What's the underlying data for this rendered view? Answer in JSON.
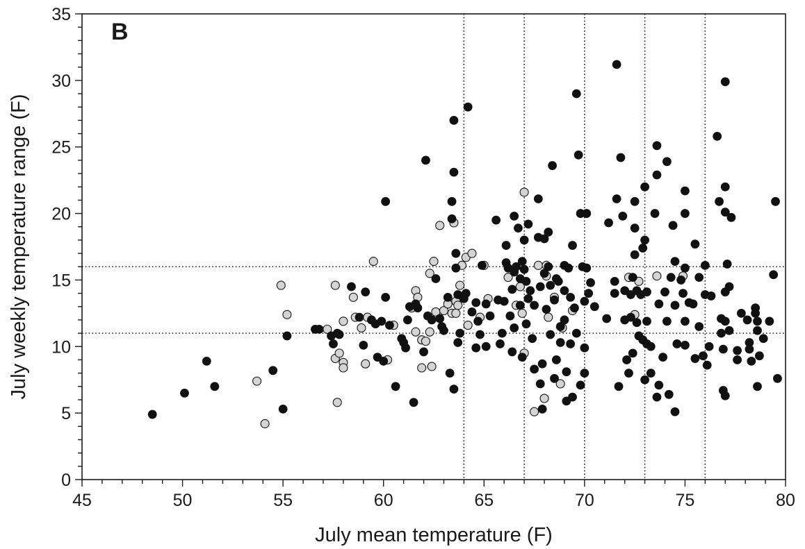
{
  "chart_data": {
    "type": "scatter",
    "panel_label": "B",
    "xlabel": "July mean temperature (F)",
    "ylabel": "July weekly temperature range (F)",
    "xlim": [
      45,
      80
    ],
    "ylim": [
      0,
      35
    ],
    "x_ticks": [
      45,
      50,
      55,
      60,
      65,
      70,
      75,
      80
    ],
    "y_ticks": [
      0,
      5,
      10,
      15,
      20,
      25,
      30,
      35
    ],
    "x_minor_step": 1,
    "y_minor_step": 1,
    "grid": false,
    "reference_lines": {
      "vertical": [
        64,
        67,
        70,
        73,
        76
      ],
      "horizontal": [
        11,
        16
      ]
    },
    "series": [
      {
        "style": "filled",
        "color": "#111111",
        "points": [
          [
            48.5,
            4.9
          ],
          [
            50.1,
            6.5
          ],
          [
            51.2,
            8.9
          ],
          [
            51.6,
            7.0
          ],
          [
            54.5,
            8.2
          ],
          [
            55.0,
            5.3
          ],
          [
            55.2,
            10.8
          ],
          [
            56.6,
            11.3
          ],
          [
            56.8,
            11.3
          ],
          [
            57.4,
            10.8
          ],
          [
            57.5,
            10.2
          ],
          [
            57.7,
            11.0
          ],
          [
            57.8,
            10.9
          ],
          [
            58.4,
            14.5
          ],
          [
            58.8,
            12.2
          ],
          [
            59.0,
            10.1
          ],
          [
            59.1,
            14.1
          ],
          [
            59.4,
            12.0
          ],
          [
            59.6,
            11.7
          ],
          [
            59.7,
            9.2
          ],
          [
            59.9,
            11.9
          ],
          [
            60.0,
            8.9
          ],
          [
            60.1,
            20.9
          ],
          [
            60.1,
            13.7
          ],
          [
            60.3,
            11.6
          ],
          [
            60.6,
            7.0
          ],
          [
            60.9,
            10.6
          ],
          [
            61.0,
            10.3
          ],
          [
            61.1,
            9.9
          ],
          [
            61.2,
            12.0
          ],
          [
            61.3,
            13.0
          ],
          [
            61.5,
            5.8
          ],
          [
            61.6,
            13.2
          ],
          [
            61.7,
            12.9
          ],
          [
            62.0,
            9.6
          ],
          [
            62.1,
            24.0
          ],
          [
            62.2,
            12.3
          ],
          [
            62.4,
            12.0
          ],
          [
            62.6,
            15.1
          ],
          [
            62.8,
            12.1
          ],
          [
            62.9,
            11.5
          ],
          [
            63.0,
            11.2
          ],
          [
            63.2,
            13.7
          ],
          [
            63.3,
            8.0
          ],
          [
            63.4,
            20.9
          ],
          [
            63.4,
            19.6
          ],
          [
            63.5,
            27.0
          ],
          [
            63.5,
            23.1
          ],
          [
            63.5,
            6.8
          ],
          [
            63.6,
            17.0
          ],
          [
            63.6,
            15.9
          ],
          [
            63.7,
            13.9
          ],
          [
            63.7,
            10.3
          ],
          [
            63.8,
            11.0
          ],
          [
            64.0,
            13.6
          ],
          [
            64.1,
            14.0
          ],
          [
            64.2,
            28.0
          ],
          [
            64.4,
            12.6
          ],
          [
            64.6,
            13.3
          ],
          [
            64.6,
            9.9
          ],
          [
            64.7,
            11.9
          ],
          [
            64.8,
            10.9
          ],
          [
            64.9,
            16.1
          ],
          [
            65.1,
            13.2
          ],
          [
            65.1,
            10.0
          ],
          [
            65.3,
            12.3
          ],
          [
            65.6,
            19.5
          ],
          [
            65.7,
            13.5
          ],
          [
            65.8,
            10.2
          ],
          [
            65.9,
            11.0
          ],
          [
            66.0,
            13.4
          ],
          [
            66.1,
            17.6
          ],
          [
            66.1,
            16.3
          ],
          [
            66.2,
            15.9
          ],
          [
            66.3,
            12.3
          ],
          [
            66.4,
            14.3
          ],
          [
            66.4,
            9.6
          ],
          [
            66.5,
            19.8
          ],
          [
            66.5,
            15.6
          ],
          [
            66.5,
            11.4
          ],
          [
            66.6,
            16.0
          ],
          [
            66.7,
            18.9
          ],
          [
            66.8,
            15.1
          ],
          [
            66.8,
            13.1
          ],
          [
            66.9,
            16.4
          ],
          [
            66.9,
            9.2
          ],
          [
            67.0,
            18.0
          ],
          [
            67.0,
            15.8
          ],
          [
            67.1,
            14.9
          ],
          [
            67.1,
            11.7
          ],
          [
            67.2,
            19.2
          ],
          [
            67.2,
            13.6
          ],
          [
            67.3,
            14.2
          ],
          [
            67.4,
            10.6
          ],
          [
            67.5,
            13.1
          ],
          [
            67.5,
            8.3
          ],
          [
            67.7,
            21.1
          ],
          [
            67.7,
            18.2
          ],
          [
            67.8,
            14.5
          ],
          [
            67.8,
            7.2
          ],
          [
            67.9,
            5.3
          ],
          [
            67.9,
            8.7
          ],
          [
            68.0,
            18.1
          ],
          [
            68.0,
            15.5
          ],
          [
            68.1,
            12.8
          ],
          [
            68.2,
            18.6
          ],
          [
            68.2,
            16.0
          ],
          [
            68.3,
            14.6
          ],
          [
            68.3,
            10.9
          ],
          [
            68.4,
            23.6
          ],
          [
            68.5,
            13.5
          ],
          [
            68.5,
            7.6
          ],
          [
            68.6,
            15.1
          ],
          [
            68.6,
            9.0
          ],
          [
            68.7,
            14.9
          ],
          [
            68.8,
            11.5
          ],
          [
            68.8,
            10.3
          ],
          [
            69.0,
            16.1
          ],
          [
            69.0,
            14.2
          ],
          [
            69.0,
            12.0
          ],
          [
            69.1,
            8.1
          ],
          [
            69.1,
            5.9
          ],
          [
            69.2,
            15.9
          ],
          [
            69.3,
            13.7
          ],
          [
            69.3,
            10.2
          ],
          [
            69.4,
            17.6
          ],
          [
            69.4,
            6.2
          ],
          [
            69.5,
            12.9
          ],
          [
            69.6,
            29.0
          ],
          [
            69.6,
            11.0
          ],
          [
            69.7,
            24.4
          ],
          [
            69.8,
            20.0
          ],
          [
            69.8,
            7.1
          ],
          [
            69.9,
            16.0
          ],
          [
            70.0,
            13.4
          ],
          [
            70.0,
            9.9
          ],
          [
            70.0,
            8.0
          ],
          [
            70.1,
            20.0
          ],
          [
            70.1,
            15.9
          ],
          [
            70.2,
            14.0
          ],
          [
            70.3,
            14.8
          ],
          [
            70.5,
            13.0
          ],
          [
            71.1,
            12.1
          ],
          [
            71.2,
            19.3
          ],
          [
            71.5,
            14.9
          ],
          [
            71.5,
            14.0
          ],
          [
            71.6,
            31.2
          ],
          [
            71.6,
            21.1
          ],
          [
            71.7,
            7.0
          ],
          [
            71.8,
            24.2
          ],
          [
            71.9,
            19.8
          ],
          [
            72.0,
            14.2
          ],
          [
            72.0,
            12.0
          ],
          [
            72.1,
            9.0
          ],
          [
            72.2,
            8.0
          ],
          [
            72.3,
            13.9
          ],
          [
            72.3,
            12.2
          ],
          [
            72.4,
            15.2
          ],
          [
            72.4,
            9.5
          ],
          [
            72.5,
            20.9
          ],
          [
            72.5,
            18.9
          ],
          [
            72.5,
            16.9
          ],
          [
            72.6,
            14.2
          ],
          [
            72.6,
            11.8
          ],
          [
            72.7,
            10.8
          ],
          [
            72.8,
            13.9
          ],
          [
            72.9,
            17.4
          ],
          [
            72.9,
            10.5
          ],
          [
            73.0,
            22.0
          ],
          [
            73.0,
            18.0
          ],
          [
            73.0,
            7.5
          ],
          [
            73.1,
            14.1
          ],
          [
            73.1,
            11.9
          ],
          [
            73.1,
            10.2
          ],
          [
            73.3,
            10.0
          ],
          [
            73.3,
            8.0
          ],
          [
            73.5,
            20.0
          ],
          [
            73.6,
            25.1
          ],
          [
            73.6,
            22.9
          ],
          [
            73.6,
            6.2
          ],
          [
            73.7,
            13.2
          ],
          [
            73.7,
            7.1
          ],
          [
            73.9,
            9.2
          ],
          [
            74.0,
            14.1
          ],
          [
            74.1,
            23.9
          ],
          [
            74.1,
            11.9
          ],
          [
            74.2,
            6.4
          ],
          [
            74.3,
            15.2
          ],
          [
            74.4,
            19.1
          ],
          [
            74.5,
            16.4
          ],
          [
            74.5,
            13.1
          ],
          [
            74.5,
            5.1
          ],
          [
            74.6,
            10.2
          ],
          [
            74.8,
            15.0
          ],
          [
            74.9,
            14.0
          ],
          [
            75.0,
            21.7
          ],
          [
            75.0,
            20.0
          ],
          [
            75.0,
            15.9
          ],
          [
            75.0,
            11.9
          ],
          [
            75.0,
            10.1
          ],
          [
            75.2,
            13.3
          ],
          [
            75.4,
            13.2
          ],
          [
            75.5,
            17.7
          ],
          [
            75.5,
            9.1
          ],
          [
            75.7,
            15.2
          ],
          [
            75.7,
            11.5
          ],
          [
            75.9,
            9.3
          ],
          [
            76.0,
            16.1
          ],
          [
            76.0,
            13.9
          ],
          [
            76.1,
            8.6
          ],
          [
            76.2,
            10.0
          ],
          [
            76.3,
            13.8
          ],
          [
            76.6,
            25.8
          ],
          [
            76.7,
            20.9
          ],
          [
            76.8,
            12.1
          ],
          [
            76.8,
            11.0
          ],
          [
            76.9,
            9.8
          ],
          [
            76.9,
            6.7
          ],
          [
            77.0,
            29.9
          ],
          [
            77.0,
            22.0
          ],
          [
            77.0,
            20.1
          ],
          [
            77.0,
            14.1
          ],
          [
            77.0,
            11.9
          ],
          [
            77.0,
            6.3
          ],
          [
            77.1,
            16.2
          ],
          [
            77.2,
            14.5
          ],
          [
            77.2,
            11.2
          ],
          [
            77.3,
            19.7
          ],
          [
            77.6,
            9.7
          ],
          [
            77.6,
            9.0
          ],
          [
            77.8,
            12.5
          ],
          [
            78.1,
            12.0
          ],
          [
            78.2,
            10.3
          ],
          [
            78.2,
            9.8
          ],
          [
            78.3,
            8.9
          ],
          [
            78.5,
            12.9
          ],
          [
            78.5,
            12.5
          ],
          [
            78.6,
            11.9
          ],
          [
            78.6,
            11.2
          ],
          [
            78.6,
            7.0
          ],
          [
            78.7,
            9.3
          ],
          [
            78.9,
            10.6
          ],
          [
            79.2,
            11.9
          ],
          [
            79.4,
            15.4
          ],
          [
            79.5,
            20.9
          ],
          [
            79.6,
            7.6
          ]
        ]
      },
      {
        "style": "open",
        "color": "#d4d4d4",
        "points": [
          [
            53.7,
            7.4
          ],
          [
            54.1,
            4.2
          ],
          [
            54.9,
            14.6
          ],
          [
            55.2,
            12.4
          ],
          [
            57.2,
            11.3
          ],
          [
            57.6,
            9.1
          ],
          [
            57.6,
            14.6
          ],
          [
            57.7,
            5.8
          ],
          [
            57.8,
            9.5
          ],
          [
            58.0,
            8.8
          ],
          [
            58.0,
            8.4
          ],
          [
            58.0,
            11.9
          ],
          [
            58.5,
            13.7
          ],
          [
            58.6,
            12.2
          ],
          [
            58.9,
            11.4
          ],
          [
            59.1,
            8.7
          ],
          [
            59.2,
            12.2
          ],
          [
            59.5,
            16.4
          ],
          [
            60.2,
            9.0
          ],
          [
            60.5,
            11.6
          ],
          [
            61.4,
            12.9
          ],
          [
            61.6,
            14.2
          ],
          [
            61.6,
            11.1
          ],
          [
            61.7,
            13.7
          ],
          [
            61.9,
            10.5
          ],
          [
            61.9,
            8.4
          ],
          [
            62.1,
            10.4
          ],
          [
            62.3,
            15.5
          ],
          [
            62.3,
            11.1
          ],
          [
            62.4,
            8.5
          ],
          [
            62.5,
            16.4
          ],
          [
            62.6,
            12.6
          ],
          [
            62.8,
            19.1
          ],
          [
            63.0,
            12.7
          ],
          [
            63.2,
            13.2
          ],
          [
            63.4,
            12.5
          ],
          [
            63.5,
            19.3
          ],
          [
            63.6,
            13.4
          ],
          [
            63.6,
            12.5
          ],
          [
            63.7,
            13.1
          ],
          [
            63.8,
            14.6
          ],
          [
            63.9,
            16.1
          ],
          [
            64.1,
            16.7
          ],
          [
            64.2,
            11.6
          ],
          [
            64.4,
            17.0
          ],
          [
            64.8,
            12.2
          ],
          [
            65.0,
            16.1
          ],
          [
            65.2,
            13.6
          ],
          [
            66.2,
            15.2
          ],
          [
            66.6,
            13.1
          ],
          [
            66.8,
            14.5
          ],
          [
            66.9,
            12.5
          ],
          [
            67.0,
            21.6
          ],
          [
            67.0,
            9.5
          ],
          [
            67.5,
            5.1
          ],
          [
            67.7,
            16.1
          ],
          [
            68.0,
            6.1
          ],
          [
            68.1,
            16.1
          ],
          [
            68.1,
            15.3
          ],
          [
            68.2,
            12.2
          ],
          [
            68.5,
            13.7
          ],
          [
            68.8,
            7.2
          ],
          [
            68.9,
            11.4
          ],
          [
            69.4,
            12.7
          ],
          [
            72.2,
            15.2
          ],
          [
            72.5,
            12.4
          ],
          [
            72.7,
            14.9
          ],
          [
            73.6,
            15.3
          ],
          [
            74.9,
            15.3
          ]
        ]
      }
    ]
  }
}
